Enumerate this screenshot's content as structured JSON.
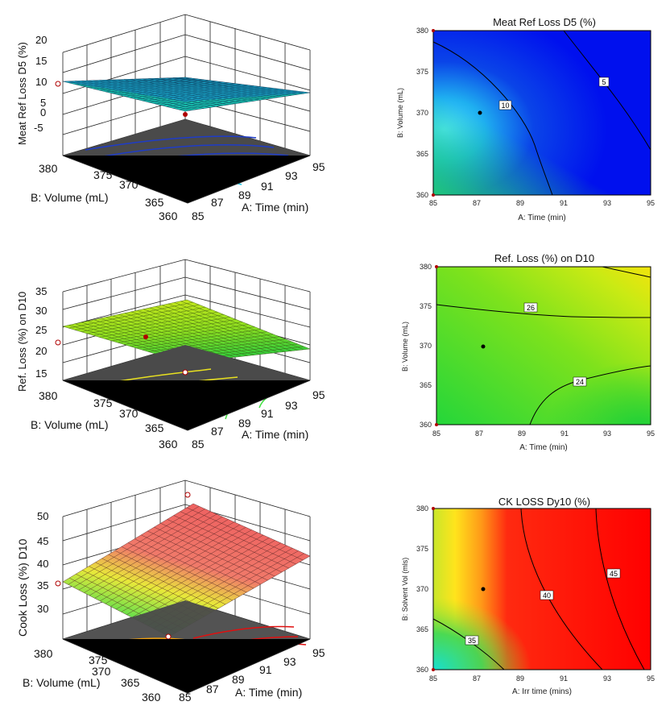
{
  "figures": {
    "surfaces": [
      {
        "zlabel": "Meat Ref Loss D5  (%)",
        "xlabel": "A: Time (min)",
        "ylabel": "B: Volume (mL)",
        "zticks": [
          "20",
          "15",
          "10",
          "5",
          "0",
          "-5"
        ],
        "xticks": [
          "85",
          "87",
          "89",
          "91",
          "93",
          "95"
        ],
        "yticks": [
          "380",
          "375",
          "370",
          "365",
          "360"
        ]
      },
      {
        "zlabel": "Ref. Loss (%) on D10",
        "xlabel": "A: Time (min)",
        "ylabel": "B: Volume (mL)",
        "zticks": [
          "35",
          "30",
          "25",
          "20",
          "15"
        ],
        "xticks": [
          "85",
          "87",
          "89",
          "91",
          "93",
          "95"
        ],
        "yticks": [
          "380",
          "375",
          "370",
          "365",
          "360"
        ]
      },
      {
        "zlabel": "Cook Loss (%) D10",
        "xlabel": "A: Time (min)",
        "ylabel": "B: Volume (mL)",
        "zticks": [
          "50",
          "45",
          "40",
          "35",
          "30"
        ],
        "xticks": [
          "85",
          "87",
          "89",
          "91",
          "93",
          "95"
        ],
        "yticks": [
          "380",
          "375",
          "370",
          "365",
          "360"
        ]
      }
    ],
    "contours": [
      {
        "title": "Meat Ref Loss D5  (%)",
        "xlabel": "A: Time (min)",
        "ylabel": "B: Volume (mL)",
        "xticks": [
          "85",
          "87",
          "89",
          "91",
          "93",
          "95"
        ],
        "yticks": [
          "360",
          "365",
          "370",
          "375",
          "380"
        ],
        "labels": [
          "10",
          "5"
        ]
      },
      {
        "title": "Ref. Loss (%) on D10",
        "xlabel": "A: Time (min)",
        "ylabel": "B: Volume (mL)",
        "xticks": [
          "85",
          "87",
          "89",
          "91",
          "93",
          "95"
        ],
        "yticks": [
          "360",
          "365",
          "370",
          "375",
          "380"
        ],
        "labels": [
          "26",
          "24"
        ]
      },
      {
        "title": "CK LOSS Dy10 (%)",
        "xlabel": "A: Irr time (mins)",
        "ylabel": "B: Solvent Vol (mls)",
        "xticks": [
          "85",
          "87",
          "89",
          "91",
          "93",
          "95"
        ],
        "yticks": [
          "360",
          "365",
          "370",
          "375",
          "380"
        ],
        "labels": [
          "35",
          "40",
          "45"
        ]
      }
    ]
  },
  "chart_data": [
    {
      "type": "surface",
      "title": "",
      "xlabel": "A: Time (min)",
      "ylabel": "B: Volume (mL)",
      "zlabel": "Meat Ref Loss D5  (%)",
      "xlim": [
        85,
        95
      ],
      "ylim": [
        360,
        380
      ],
      "zlim": [
        -5,
        20
      ],
      "grid": [
        {
          "x": 85,
          "y": 380,
          "z": 8
        },
        {
          "x": 95,
          "y": 380,
          "z": 8
        },
        {
          "x": 85,
          "y": 360,
          "z": 12
        },
        {
          "x": 95,
          "y": 360,
          "z": 4
        }
      ],
      "design_point": {
        "x": 87,
        "y": 370,
        "z": 7
      }
    },
    {
      "type": "contour",
      "title": "Meat Ref Loss D5  (%)",
      "xlabel": "A: Time (min)",
      "ylabel": "B: Volume (mL)",
      "xlim": [
        85,
        95
      ],
      "ylim": [
        360,
        380
      ],
      "contours": [
        {
          "level": 10
        },
        {
          "level": 5
        }
      ],
      "design_point": {
        "x": 87,
        "y": 370
      }
    },
    {
      "type": "surface",
      "title": "",
      "xlabel": "A: Time (min)",
      "ylabel": "B: Volume (mL)",
      "zlabel": "Ref. Loss (%) on D10",
      "xlim": [
        85,
        95
      ],
      "ylim": [
        360,
        380
      ],
      "zlim": [
        15,
        35
      ],
      "grid": [
        {
          "x": 85,
          "y": 380,
          "z": 26
        },
        {
          "x": 95,
          "y": 380,
          "z": 28
        },
        {
          "x": 85,
          "y": 360,
          "z": 24
        },
        {
          "x": 95,
          "y": 360,
          "z": 22
        }
      ],
      "design_point": {
        "x": 87,
        "y": 370,
        "z": 25
      }
    },
    {
      "type": "contour",
      "title": "Ref. Loss (%) on D10",
      "xlabel": "A: Time (min)",
      "ylabel": "B: Volume (mL)",
      "xlim": [
        85,
        95
      ],
      "ylim": [
        360,
        380
      ],
      "contours": [
        {
          "level": 26
        },
        {
          "level": 24
        }
      ],
      "design_point": {
        "x": 87,
        "y": 370
      }
    },
    {
      "type": "surface",
      "title": "",
      "xlabel": "A: Time (min)",
      "ylabel": "B: Volume (mL)",
      "zlabel": "Cook Loss (%) D10",
      "xlim": [
        85,
        95
      ],
      "ylim": [
        360,
        380
      ],
      "zlim": [
        30,
        50
      ],
      "grid": [
        {
          "x": 85,
          "y": 380,
          "z": 46
        },
        {
          "x": 95,
          "y": 380,
          "z": 49
        },
        {
          "x": 85,
          "y": 360,
          "z": 33
        },
        {
          "x": 95,
          "y": 360,
          "z": 47
        }
      ],
      "design_point": {
        "x": 87,
        "y": 370,
        "z": 36
      }
    },
    {
      "type": "contour",
      "title": "CK LOSS Dy10 (%)",
      "xlabel": "A: Irr time (mins)",
      "ylabel": "B: Solvent Vol (mls)",
      "xlim": [
        85,
        95
      ],
      "ylim": [
        360,
        380
      ],
      "contours": [
        {
          "level": 35
        },
        {
          "level": 40
        },
        {
          "level": 45
        }
      ],
      "design_point": {
        "x": 87,
        "y": 370
      }
    }
  ]
}
